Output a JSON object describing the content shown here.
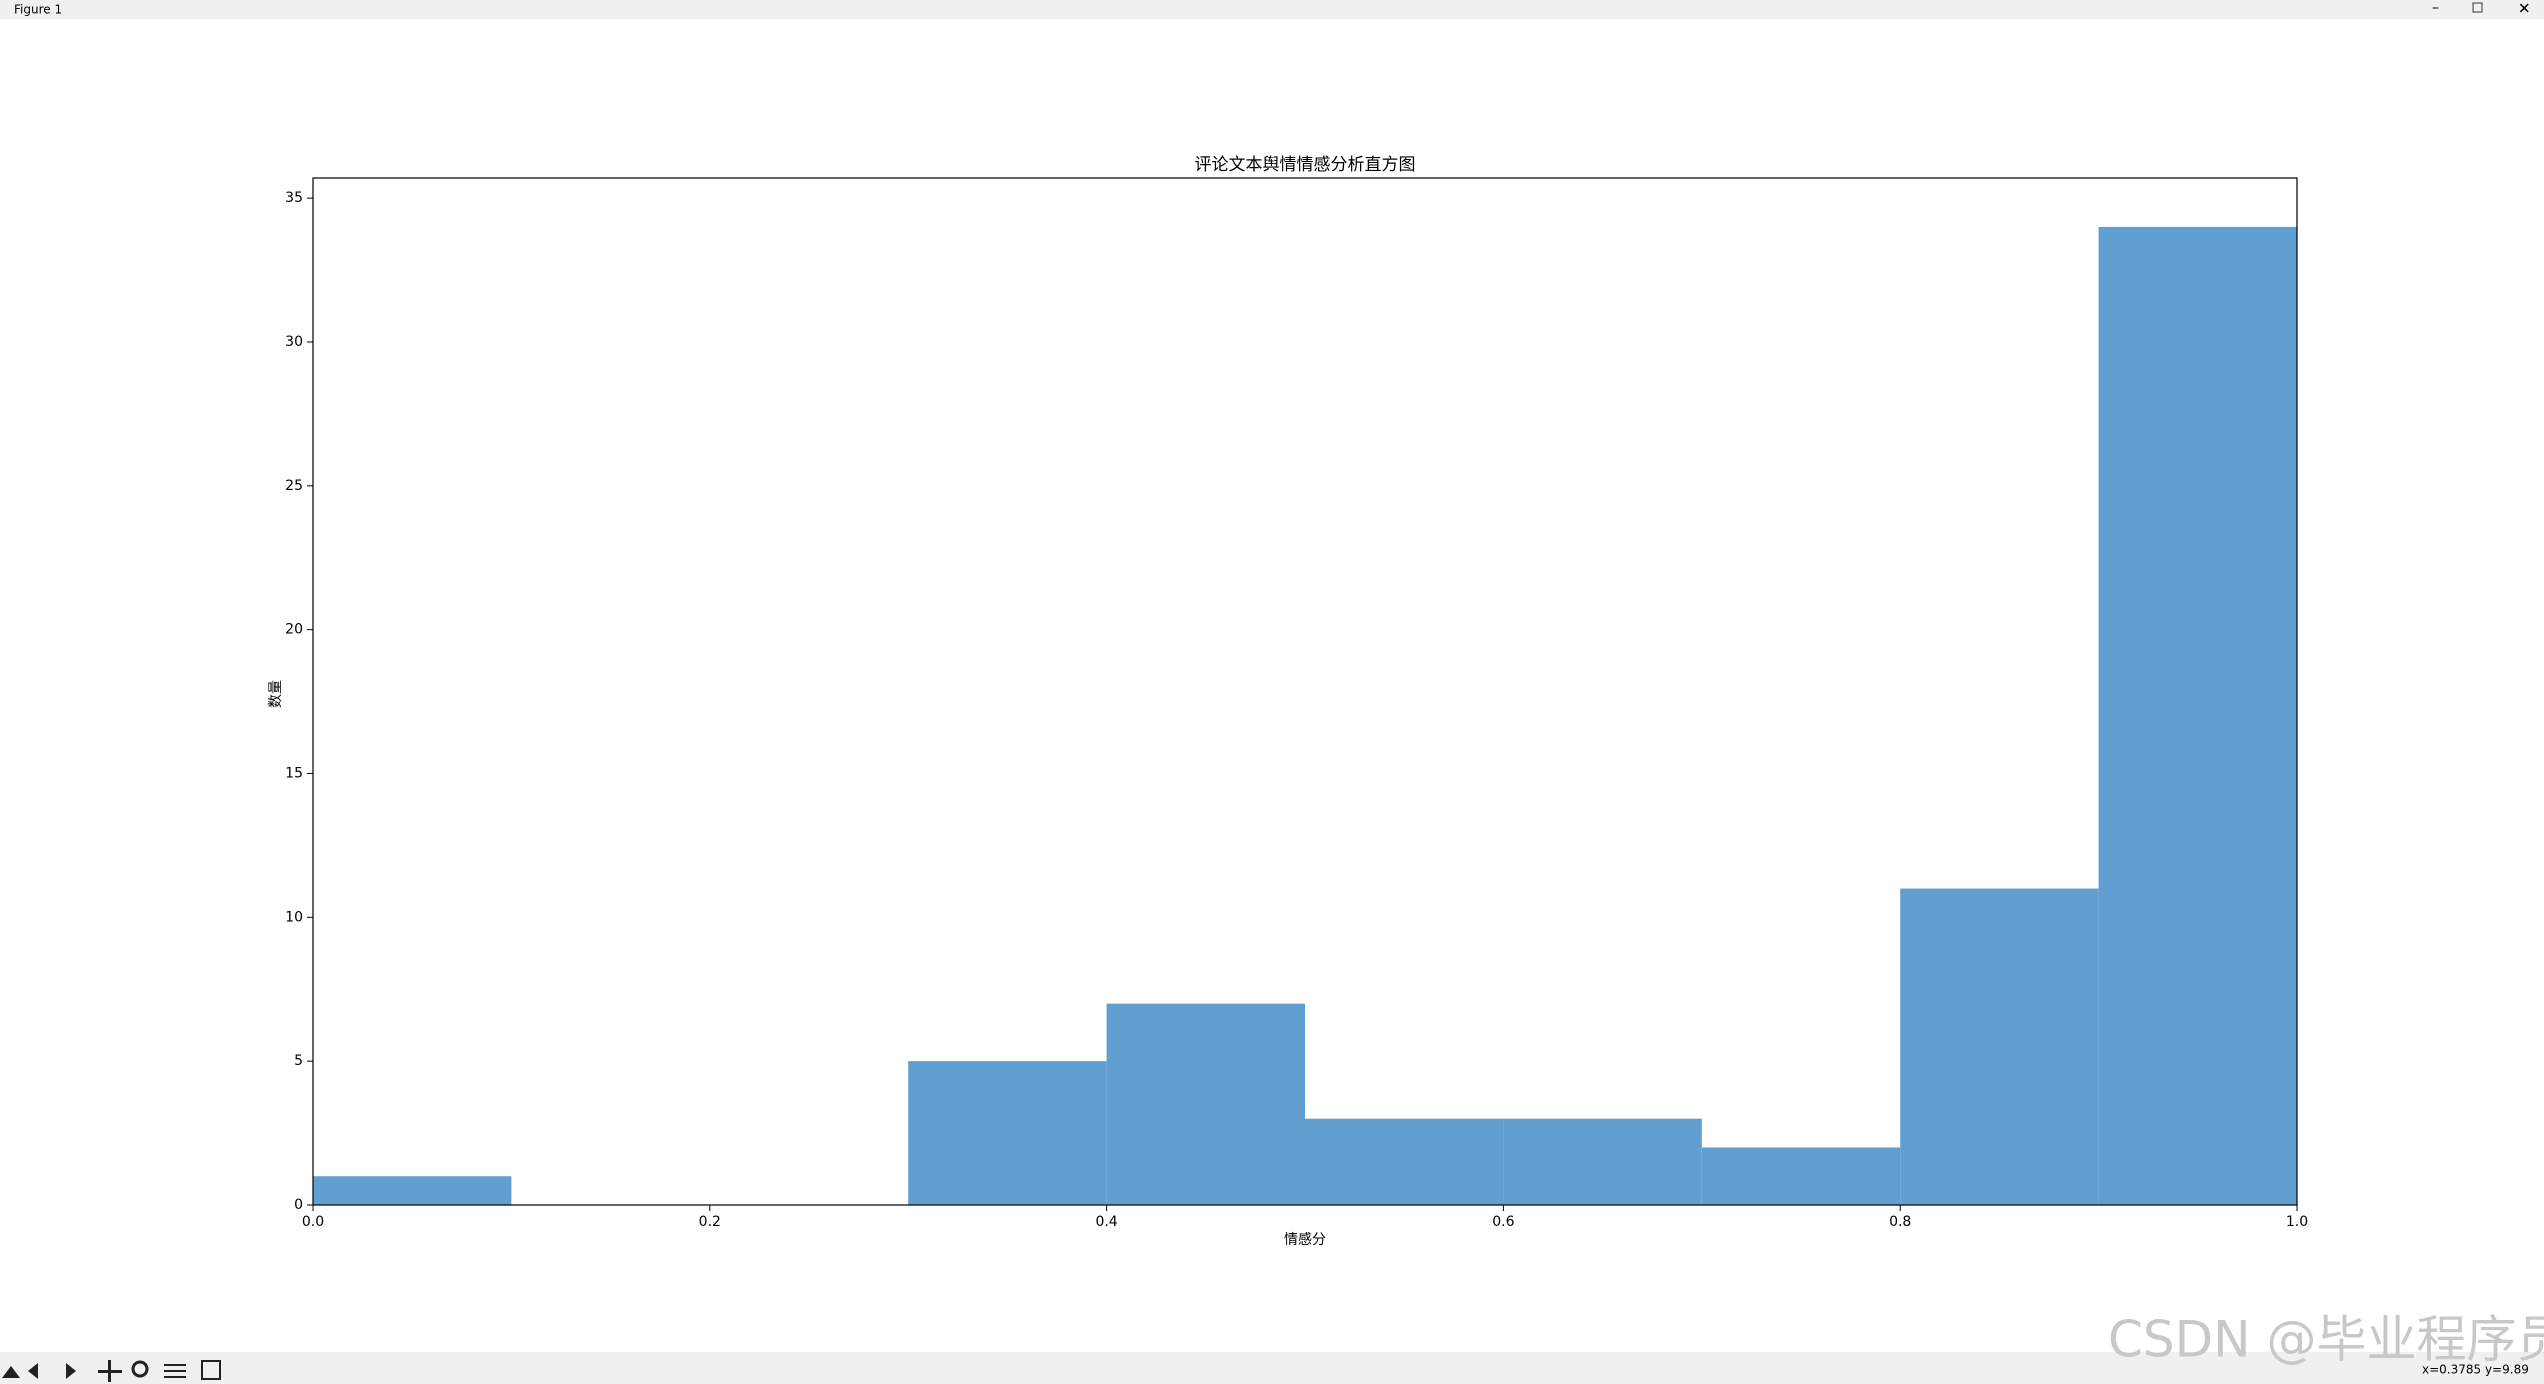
{
  "window": {
    "title": "Figure 1",
    "status": "x=0.3785 y=9.89"
  },
  "watermark": "CSDN @毕业程序员",
  "chart_data": {
    "type": "histogram",
    "title": "评论文本舆情情感分析直方图",
    "x_label": "情感分",
    "y_label": "数量",
    "bins": [
      0,
      0.1,
      0.2,
      0.3,
      0.4,
      0.5,
      0.6,
      0.7,
      0.8,
      0.9,
      1.0
    ],
    "values": [
      1,
      0,
      0,
      5,
      7,
      3,
      3,
      2,
      11,
      34
    ],
    "color": "#619fd1",
    "xlim": [
      0,
      1
    ],
    "xticks": [
      {
        "value": 0,
        "label": "0.0"
      },
      {
        "value": 0.2,
        "label": "0.2"
      },
      {
        "value": 0.4,
        "label": "0.4"
      },
      {
        "value": 0.6,
        "label": "0.6"
      },
      {
        "value": 0.8,
        "label": "0.8"
      },
      {
        "value": 1,
        "label": "1.0"
      }
    ],
    "ylim": [
      0,
      35.7
    ],
    "yticks": [
      0,
      5,
      10,
      15,
      20,
      25,
      30,
      35
    ]
  }
}
